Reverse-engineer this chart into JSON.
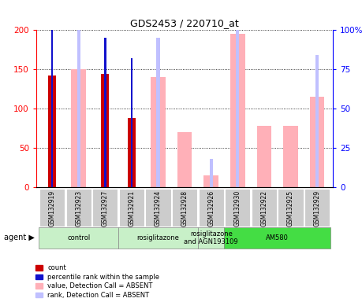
{
  "title": "GDS2453 / 220710_at",
  "samples": [
    "GSM132919",
    "GSM132923",
    "GSM132927",
    "GSM132921",
    "GSM132924",
    "GSM132928",
    "GSM132926",
    "GSM132930",
    "GSM132922",
    "GSM132925",
    "GSM132929"
  ],
  "count_values": [
    142,
    null,
    144,
    88,
    null,
    null,
    null,
    null,
    null,
    null,
    null
  ],
  "percentile_rank_values": [
    103,
    null,
    95,
    82,
    null,
    null,
    null,
    null,
    null,
    null,
    null
  ],
  "absent_value_values": [
    null,
    150,
    null,
    null,
    140,
    70,
    15,
    195,
    78,
    78,
    115
  ],
  "absent_rank_values": [
    null,
    100,
    null,
    null,
    95,
    null,
    18,
    108,
    null,
    null,
    84
  ],
  "ylim_left": [
    0,
    200
  ],
  "ylim_right": [
    0,
    100
  ],
  "left_ticks": [
    0,
    50,
    100,
    150,
    200
  ],
  "right_ticks": [
    0,
    25,
    50,
    75,
    100
  ],
  "left_tick_labels": [
    "0",
    "50",
    "100",
    "150",
    "200"
  ],
  "right_tick_labels": [
    "0",
    "25",
    "50",
    "75",
    "100%"
  ],
  "colors": {
    "count": "#cc0000",
    "percentile_rank": "#1111cc",
    "absent_value": "#ffb0b8",
    "absent_rank": "#c0c0ff",
    "bg_xticklabels": "#c8c8c8",
    "group_control": "#c8f0c8",
    "group_rosi": "#c8f0c8",
    "group_rosi_agn": "#c8f0c8",
    "group_am580": "#44dd44"
  },
  "legend_labels": [
    "count",
    "percentile rank within the sample",
    "value, Detection Call = ABSENT",
    "rank, Detection Call = ABSENT"
  ],
  "legend_colors": [
    "#cc0000",
    "#1111cc",
    "#ffb0b8",
    "#c0c0ff"
  ],
  "group_starts": [
    0,
    3,
    6,
    7
  ],
  "group_ends": [
    3,
    6,
    7,
    11
  ],
  "group_labels": [
    "control",
    "rosiglitazone",
    "rosiglitazone\nand AGN193109",
    "AM580"
  ],
  "group_colors": [
    "#c8f0c8",
    "#c8f0c8",
    "#c8f0c8",
    "#44dd44"
  ]
}
